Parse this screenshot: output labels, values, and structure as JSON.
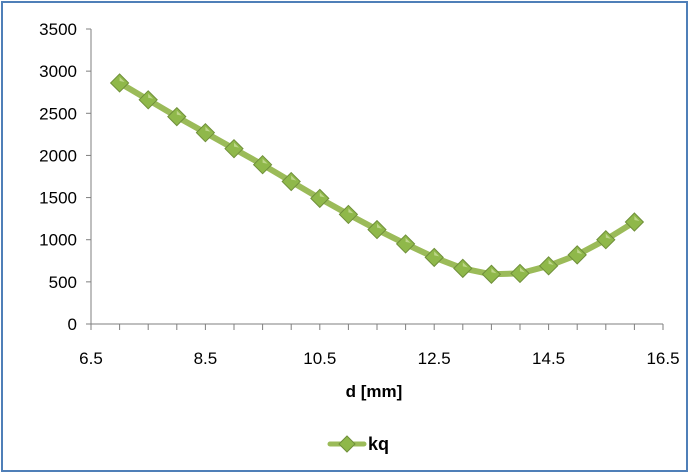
{
  "chart_data": {
    "type": "line",
    "xlabel": "d [mm]",
    "ylabel": "",
    "xlim": [
      6.5,
      16.5
    ],
    "ylim": [
      0,
      3500
    ],
    "x_ticks": [
      "6.5",
      "8.5",
      "10.5",
      "12.5",
      "14.5",
      "16.5"
    ],
    "y_ticks": [
      "0",
      "500",
      "1000",
      "1500",
      "2000",
      "2500",
      "3000",
      "3500"
    ],
    "x_tick_values": [
      6.5,
      8.5,
      10.5,
      12.5,
      14.5,
      16.5
    ],
    "y_tick_values": [
      0,
      500,
      1000,
      1500,
      2000,
      2500,
      3000,
      3500
    ],
    "grid": false,
    "legend_position": "bottom-center",
    "series": [
      {
        "name": "kq",
        "color": "#9bbb59",
        "marker_color": "#8fb84a",
        "x": [
          7,
          7.5,
          8,
          8.5,
          9,
          9.5,
          10,
          10.5,
          11,
          11.5,
          12,
          12.5,
          13,
          13.5,
          14,
          14.5,
          15,
          15.5,
          16
        ],
        "y": [
          2860,
          2660,
          2460,
          2270,
          2080,
          1890,
          1690,
          1490,
          1300,
          1120,
          950,
          790,
          660,
          590,
          600,
          690,
          820,
          1000,
          1210
        ]
      }
    ]
  }
}
